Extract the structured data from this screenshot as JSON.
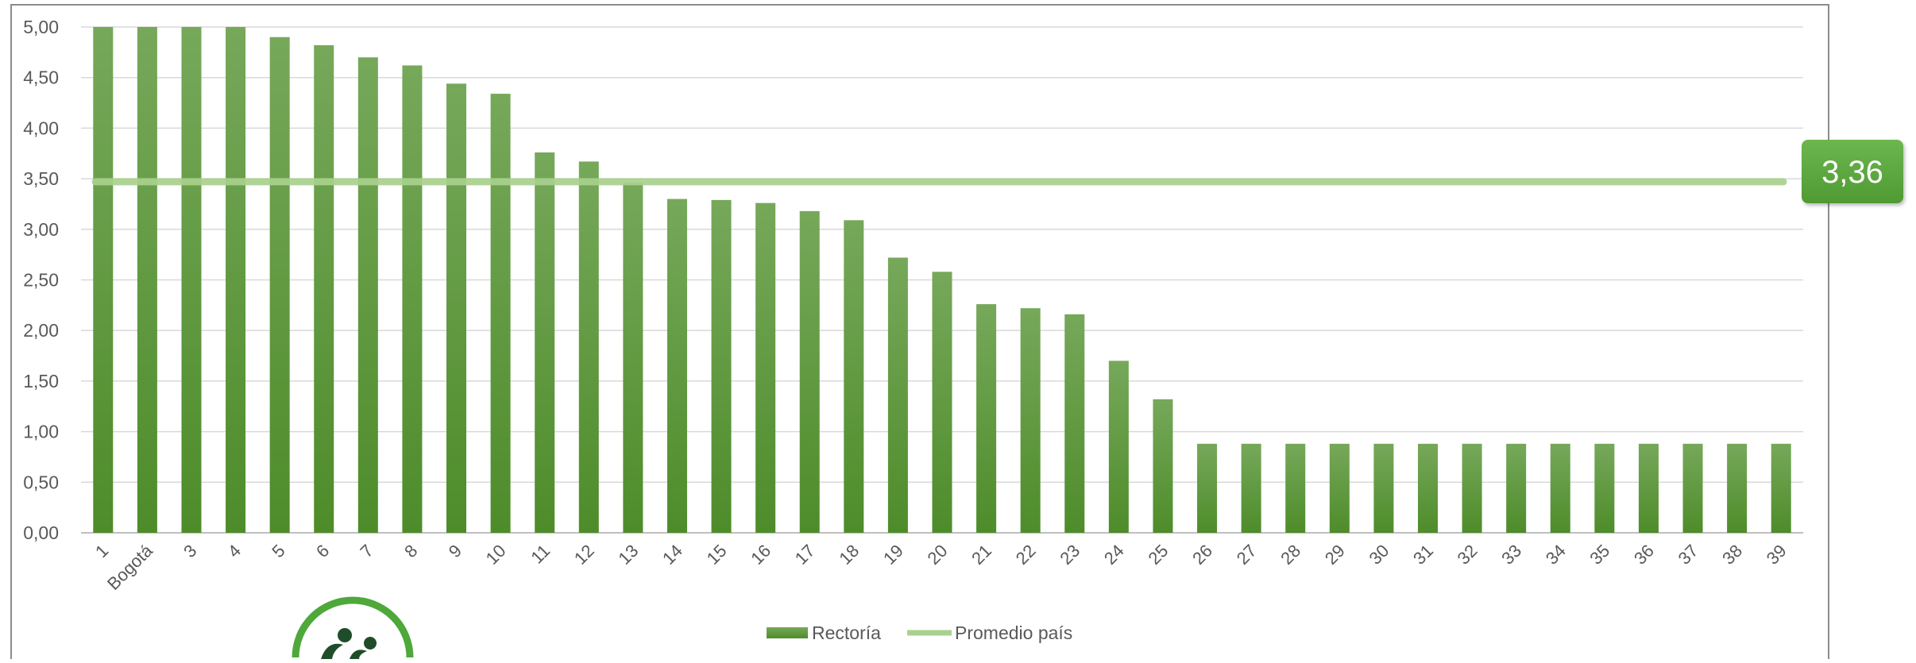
{
  "chart_data": {
    "type": "bar",
    "categories": [
      "1",
      "Bogotá",
      "3",
      "4",
      "5",
      "6",
      "7",
      "8",
      "9",
      "10",
      "11",
      "12",
      "13",
      "14",
      "15",
      "16",
      "17",
      "18",
      "19",
      "20",
      "21",
      "22",
      "23",
      "24",
      "25",
      "26",
      "27",
      "28",
      "29",
      "30",
      "31",
      "32",
      "33",
      "34",
      "35",
      "36",
      "37",
      "38",
      "39"
    ],
    "series": [
      {
        "name": "Rectoría",
        "values": [
          5.0,
          5.0,
          5.0,
          5.0,
          4.9,
          4.82,
          4.7,
          4.62,
          4.44,
          4.34,
          3.76,
          3.67,
          3.46,
          3.3,
          3.29,
          3.26,
          3.18,
          3.09,
          2.72,
          2.58,
          2.26,
          2.22,
          2.16,
          1.7,
          1.32,
          0.88,
          0.88,
          0.88,
          0.88,
          0.88,
          0.88,
          0.88,
          0.88,
          0.88,
          0.88,
          0.88,
          0.88,
          0.88,
          0.88
        ],
        "color": "#5b9a3c"
      },
      {
        "name": "Promedio país",
        "type": "line",
        "value": 3.47,
        "color": "#a9d18e"
      }
    ],
    "y_ticks": [
      "0,00",
      "0,50",
      "1,00",
      "1,50",
      "2,00",
      "2,50",
      "3,00",
      "3,50",
      "4,00",
      "4,50",
      "5,00"
    ],
    "ylim": [
      0,
      5
    ],
    "grid": true,
    "legend_position": "bottom",
    "callout": {
      "text": "3,36",
      "color": "#5fa843"
    }
  }
}
